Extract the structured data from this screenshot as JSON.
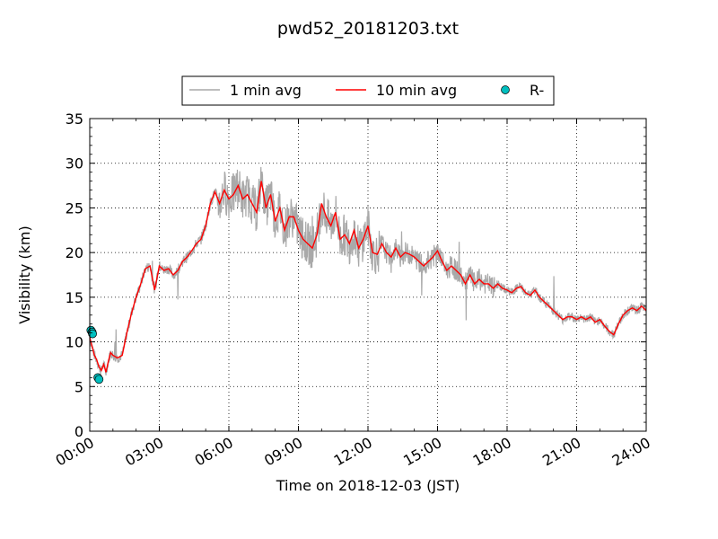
{
  "chart_data": {
    "type": "line",
    "title": "pwd52_20181203.txt",
    "xlabel": "Time on 2018-12-03 (JST)",
    "ylabel": "Visibility (km)",
    "xlim": [
      0,
      24
    ],
    "ylim": [
      0,
      35
    ],
    "grid": true,
    "legend_placement": "top-center",
    "x_tick_labels": [
      "00:00",
      "03:00",
      "06:00",
      "09:00",
      "12:00",
      "15:00",
      "18:00",
      "21:00",
      "24:00"
    ],
    "y_tick_labels": [
      "0",
      "5",
      "10",
      "15",
      "20",
      "25",
      "30",
      "35"
    ],
    "legend": [
      "1 min avg",
      "10 min avg",
      "R-"
    ],
    "colors": {
      "one_min": "#a9a9a9",
      "ten_min": "#ff0000",
      "rain": "#00bfbf"
    },
    "series": [
      {
        "name": "10 min avg",
        "x": [
          0.0,
          0.1,
          0.2,
          0.3,
          0.4,
          0.5,
          0.6,
          0.7,
          0.8,
          0.9,
          1.0,
          1.2,
          1.4,
          1.6,
          1.8,
          2.0,
          2.2,
          2.4,
          2.6,
          2.8,
          3.0,
          3.2,
          3.4,
          3.6,
          3.8,
          4.0,
          4.2,
          4.4,
          4.6,
          4.8,
          5.0,
          5.2,
          5.4,
          5.6,
          5.8,
          6.0,
          6.2,
          6.4,
          6.6,
          6.8,
          7.0,
          7.2,
          7.4,
          7.6,
          7.8,
          8.0,
          8.2,
          8.4,
          8.6,
          8.8,
          9.0,
          9.2,
          9.4,
          9.6,
          9.8,
          10.0,
          10.2,
          10.4,
          10.6,
          10.8,
          11.0,
          11.2,
          11.4,
          11.6,
          11.8,
          12.0,
          12.2,
          12.4,
          12.6,
          12.8,
          13.0,
          13.2,
          13.4,
          13.6,
          13.8,
          14.0,
          14.2,
          14.4,
          14.6,
          14.8,
          15.0,
          15.2,
          15.4,
          15.6,
          15.8,
          16.0,
          16.2,
          16.4,
          16.6,
          16.8,
          17.0,
          17.2,
          17.4,
          17.6,
          17.8,
          18.0,
          18.2,
          18.4,
          18.6,
          18.8,
          19.0,
          19.2,
          19.4,
          19.6,
          19.8,
          20.0,
          20.2,
          20.4,
          20.6,
          20.8,
          21.0,
          21.2,
          21.4,
          21.6,
          21.8,
          22.0,
          22.2,
          22.4,
          22.6,
          22.8,
          23.0,
          23.2,
          23.4,
          23.6,
          23.8,
          24.0
        ],
        "values": [
          10.5,
          9.5,
          8.5,
          8.0,
          7.2,
          6.8,
          7.5,
          6.6,
          7.8,
          8.8,
          8.5,
          8.2,
          8.5,
          11.0,
          13.2,
          15.0,
          16.5,
          18.2,
          18.5,
          15.8,
          18.5,
          18.0,
          18.2,
          17.5,
          18.0,
          19.0,
          19.5,
          20.2,
          21.0,
          21.5,
          23.0,
          25.5,
          26.8,
          25.5,
          27.0,
          26.0,
          26.5,
          27.5,
          26.0,
          26.5,
          25.5,
          24.5,
          28.0,
          25.0,
          26.5,
          23.5,
          25.0,
          22.5,
          24.0,
          24.0,
          22.5,
          21.5,
          21.0,
          20.5,
          22.0,
          25.5,
          24.0,
          23.0,
          24.5,
          21.5,
          22.0,
          21.0,
          22.5,
          20.5,
          21.5,
          23.0,
          20.0,
          19.8,
          21.0,
          20.0,
          19.5,
          20.5,
          19.5,
          20.0,
          19.8,
          19.5,
          19.0,
          18.5,
          19.0,
          19.5,
          20.2,
          19.0,
          18.0,
          18.5,
          18.0,
          17.5,
          16.5,
          17.5,
          16.5,
          17.0,
          16.5,
          16.5,
          16.0,
          16.5,
          16.0,
          15.8,
          15.5,
          16.0,
          16.2,
          15.5,
          15.2,
          15.8,
          15.0,
          14.5,
          14.0,
          13.5,
          13.0,
          12.5,
          12.8,
          12.8,
          12.5,
          12.8,
          12.5,
          12.8,
          12.2,
          12.5,
          11.8,
          11.2,
          10.8,
          12.0,
          13.0,
          13.5,
          13.8,
          13.5,
          14.0,
          13.5
        ]
      },
      {
        "name": "R-",
        "x": [
          0.05,
          0.1,
          0.12,
          0.35,
          0.4
        ],
        "values": [
          11.3,
          11.1,
          10.9,
          6.0,
          5.8
        ]
      }
    ]
  }
}
